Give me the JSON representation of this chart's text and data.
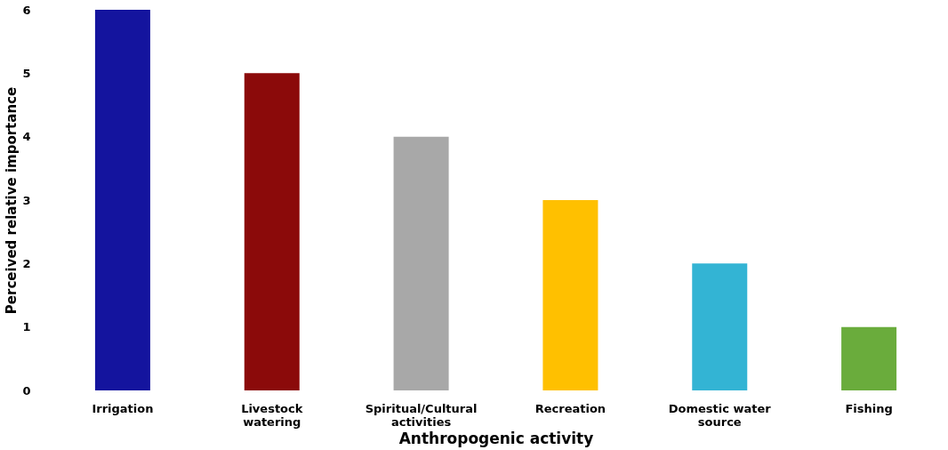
{
  "chart_data": {
    "type": "bar",
    "xlabel": "Anthropogenic activity",
    "ylabel": "Perceived relative importance",
    "categories": [
      "Irrigation",
      "Livestock watering",
      "Spiritual/Cultural activities",
      "Recreation",
      "Domestic water source",
      "Fishing"
    ],
    "values": [
      6,
      5,
      4,
      3,
      2,
      1
    ],
    "colors": [
      "#14149e",
      "#8b0a0a",
      "#a8a8a8",
      "#ffc000",
      "#33b4d4",
      "#6aac3c"
    ],
    "ylim": [
      0,
      6
    ],
    "yticks": [
      0,
      1,
      2,
      3,
      4,
      5,
      6
    ],
    "grid": false,
    "legend": false
  }
}
